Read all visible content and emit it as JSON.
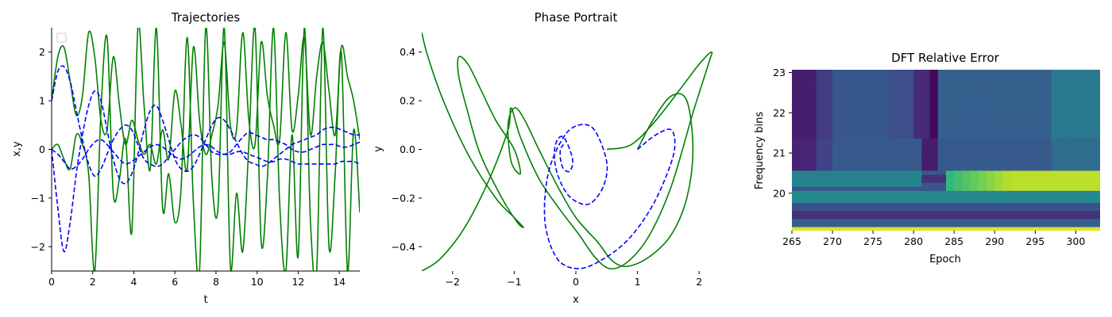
{
  "chart_data": [
    {
      "type": "line",
      "title": "Trajectories",
      "xlabel": "t",
      "ylabel": "x,y",
      "xlim": [
        0,
        15
      ],
      "ylim": [
        -2.5,
        2.5
      ],
      "xticks": [
        "0",
        "2",
        "4",
        "6",
        "8",
        "10",
        "12",
        "14"
      ],
      "yticks": [
        "2",
        "1",
        "0",
        "−1",
        "−2"
      ],
      "legend": "top-left (empty box)",
      "grid": false,
      "series": [
        {
          "style": "solid",
          "color": "#008000",
          "x": [
            0,
            0.3,
            0.6,
            0.9,
            1.2,
            1.5,
            1.8,
            2.1,
            2.4,
            2.7,
            3.0,
            3.3,
            3.6,
            3.9,
            4.2,
            4.5,
            4.8,
            5.1,
            5.4,
            5.7,
            6.0,
            6.3,
            6.6,
            6.9,
            7.2,
            7.5,
            7.8,
            8.1,
            8.4,
            8.7,
            9.0,
            9.3,
            9.6,
            9.9,
            10.2,
            10.5,
            10.8,
            11.1,
            11.4,
            11.7,
            12.0,
            12.3,
            12.6,
            12.9,
            13.2,
            13.5,
            13.8,
            14.1,
            14.4,
            14.7,
            15.0
          ],
          "y": [
            1.0,
            1.9,
            2.1,
            1.4,
            0.7,
            1.1,
            2.4,
            1.9,
            0.6,
            0.4,
            1.9,
            0.9,
            0.1,
            0.6,
            0.2,
            -0.1,
            0.1,
            -0.3,
            0.4,
            -0.2,
            1.2,
            0.5,
            -0.4,
            2.1,
            0.6,
            -0.1,
            0.3,
            0.9,
            2.2,
            0.5,
            0.4,
            2.4,
            0.6,
            0.1,
            2.2,
            1.1,
            0.5,
            0.2,
            2.4,
            0.4,
            1.1,
            2.3,
            0.3,
            1.5,
            2.2,
            1.2,
            0.3,
            2.1,
            1.5,
            1.0,
            0.2
          ]
        },
        {
          "style": "solid",
          "color": "#008000",
          "x": [
            0,
            0.3,
            0.6,
            0.9,
            1.2,
            1.5,
            1.8,
            2.1,
            2.4,
            2.7,
            3.0,
            3.3,
            3.6,
            3.9,
            4.2,
            4.5,
            4.8,
            5.1,
            5.4,
            5.7,
            6.0,
            6.3,
            6.6,
            6.9,
            7.2,
            7.5,
            7.8,
            8.1,
            8.4,
            8.7,
            9.0,
            9.3,
            9.6,
            9.9,
            10.2,
            10.5,
            10.8,
            11.1,
            11.4,
            11.7,
            12.0,
            12.3,
            12.6,
            12.9,
            13.2,
            13.5,
            13.8,
            14.1,
            14.4,
            14.7,
            15.0
          ],
          "y": [
            0.0,
            0.1,
            -0.2,
            -0.4,
            0.3,
            0.1,
            -0.5,
            -2.5,
            0.8,
            2.3,
            -0.9,
            -0.6,
            0.2,
            -1.7,
            2.5,
            0.9,
            -0.4,
            2.5,
            -1.2,
            -0.5,
            -1.5,
            -0.8,
            2.3,
            -1.1,
            -2.5,
            2.5,
            -0.6,
            -1.2,
            2.5,
            -2.4,
            -0.9,
            -2.1,
            0.1,
            2.5,
            -1.9,
            -0.6,
            2.5,
            -1.1,
            -2.5,
            0.3,
            -2.2,
            2.5,
            -1.5,
            -2.5,
            2.5,
            -2.0,
            -0.5,
            2.0,
            -2.5,
            0.4,
            -1.3
          ]
        },
        {
          "style": "dashed",
          "color": "#0000ff",
          "x": [
            0,
            0.3,
            0.6,
            0.9,
            1.2,
            1.5,
            1.8,
            2.1,
            2.4,
            2.7,
            3.0,
            3.3,
            3.6,
            3.9,
            4.2,
            4.5,
            4.8,
            5.1,
            5.4,
            5.7,
            6.0,
            6.3,
            6.6,
            6.9,
            7.2,
            7.5,
            7.8,
            8.1,
            8.4,
            8.7,
            9.0,
            9.3,
            9.6,
            9.9,
            10.2,
            10.5,
            10.8,
            11.1,
            11.4,
            11.7,
            12.0,
            12.3,
            12.6,
            12.9,
            13.2,
            13.5,
            13.8,
            14.1,
            14.4,
            14.7,
            15.0
          ],
          "y": [
            1.0,
            1.6,
            1.7,
            1.4,
            0.8,
            0.2,
            -0.3,
            -0.55,
            -0.4,
            -0.1,
            0.2,
            0.4,
            0.5,
            0.4,
            0.1,
            -0.2,
            -0.3,
            -0.35,
            -0.3,
            -0.15,
            0.0,
            0.15,
            0.25,
            0.3,
            0.25,
            0.1,
            -0.05,
            -0.1,
            -0.1,
            -0.05,
            0.1,
            0.25,
            0.35,
            0.3,
            0.25,
            0.2,
            0.2,
            0.15,
            0.1,
            0.0,
            -0.05,
            -0.05,
            0.0,
            0.05,
            0.1,
            0.1,
            0.1,
            0.05,
            0.05,
            0.1,
            0.15
          ]
        },
        {
          "style": "dashed",
          "color": "#0000ff",
          "x": [
            0,
            0.3,
            0.6,
            0.9,
            1.2,
            1.5,
            1.8,
            2.1,
            2.4,
            2.7,
            3.0,
            3.3,
            3.6,
            3.9,
            4.2,
            4.5,
            4.8,
            5.1,
            5.4,
            5.7,
            6.0,
            6.3,
            6.6,
            6.9,
            7.2,
            7.5,
            7.8,
            8.1,
            8.4,
            8.7,
            9.0,
            9.3,
            9.6,
            9.9,
            10.2,
            10.5,
            10.8,
            11.1,
            11.4,
            11.7,
            12.0,
            12.3,
            12.6,
            12.9,
            13.2,
            13.5,
            13.8,
            14.1,
            14.4,
            14.7,
            15.0
          ],
          "y": [
            0.0,
            -1.2,
            -2.1,
            -1.5,
            -0.5,
            0.3,
            0.9,
            1.2,
            1.0,
            0.4,
            -0.2,
            -0.6,
            -0.7,
            -0.5,
            -0.1,
            0.4,
            0.8,
            0.9,
            0.6,
            0.2,
            -0.2,
            -0.4,
            -0.45,
            -0.35,
            -0.1,
            0.2,
            0.5,
            0.65,
            0.6,
            0.4,
            0.15,
            -0.1,
            -0.25,
            -0.3,
            -0.35,
            -0.3,
            -0.2,
            -0.1,
            0.0,
            0.1,
            0.15,
            0.2,
            0.25,
            0.3,
            0.4,
            0.45,
            0.45,
            0.4,
            0.35,
            0.3,
            0.3
          ]
        },
        {
          "style": "dashed",
          "color": "#0000ff",
          "x": [
            0,
            0.3,
            0.6,
            0.9,
            1.2,
            1.5,
            1.8,
            2.1,
            2.4,
            2.7,
            3.0,
            3.3,
            3.6,
            3.9,
            4.2,
            4.5,
            4.8,
            5.1,
            5.4,
            5.7,
            6.0,
            6.3,
            6.6,
            6.9,
            7.2,
            7.5,
            7.8,
            8.1,
            8.4,
            8.7,
            9.0,
            9.3,
            9.6,
            9.9,
            10.2,
            10.5,
            10.8,
            11.1,
            11.4,
            11.7,
            12.0,
            12.3,
            12.6,
            12.9,
            13.2,
            13.5,
            13.8,
            14.1,
            14.4,
            14.7,
            15.0
          ],
          "y": [
            0.0,
            -0.1,
            -0.25,
            -0.4,
            -0.35,
            -0.2,
            0.0,
            0.15,
            0.2,
            0.1,
            -0.05,
            -0.2,
            -0.3,
            -0.25,
            -0.15,
            -0.05,
            0.05,
            0.1,
            0.05,
            -0.05,
            -0.15,
            -0.2,
            -0.15,
            -0.05,
            0.05,
            0.1,
            0.05,
            -0.05,
            -0.1,
            -0.1,
            -0.05,
            -0.05,
            -0.1,
            -0.15,
            -0.2,
            -0.25,
            -0.25,
            -0.2,
            -0.2,
            -0.25,
            -0.3,
            -0.3,
            -0.3,
            -0.3,
            -0.3,
            -0.3,
            -0.3,
            -0.25,
            -0.25,
            -0.25,
            -0.3
          ]
        }
      ]
    },
    {
      "type": "line",
      "title": "Phase Portrait",
      "xlabel": "x",
      "ylabel": "y",
      "xlim": [
        -2.5,
        2.5
      ],
      "ylim": [
        -0.5,
        0.5
      ],
      "xticks": [
        "−2",
        "−1",
        "0",
        "1",
        "2"
      ],
      "yticks": [
        "0.4",
        "0.2",
        "0.0",
        "−0.2",
        "−0.4"
      ],
      "grid": false,
      "series": [
        {
          "style": "solid",
          "color": "#008000",
          "x": [
            1.0,
            1.25,
            1.55,
            1.8,
            1.9,
            1.8,
            1.55,
            1.2,
            0.85,
            0.6,
            0.35,
            0.0,
            -0.3,
            -0.6,
            -0.85,
            -1.0,
            -1.1,
            -1.05,
            -0.9,
            -1.0,
            -1.3,
            -1.55,
            -1.75,
            -1.9,
            -1.9,
            -1.75,
            -1.55,
            -1.2,
            -0.95,
            -0.85,
            -1.0,
            -1.3,
            -1.75,
            -2.15,
            -2.4,
            -2.5
          ],
          "y": [
            0.0,
            0.12,
            0.22,
            0.2,
            0.0,
            -0.2,
            -0.35,
            -0.44,
            -0.48,
            -0.46,
            -0.38,
            -0.28,
            -0.15,
            0.0,
            0.13,
            0.17,
            0.1,
            -0.05,
            -0.1,
            0.0,
            0.12,
            0.25,
            0.35,
            0.38,
            0.3,
            0.15,
            -0.02,
            -0.2,
            -0.3,
            -0.32,
            -0.28,
            -0.2,
            -0.02,
            0.2,
            0.38,
            0.48
          ]
        },
        {
          "style": "solid",
          "color": "#008000",
          "x": [
            -2.5,
            -2.2,
            -1.8,
            -1.4,
            -1.1,
            -1.05,
            -0.9,
            -0.6,
            -0.25,
            0.05,
            0.3,
            0.55,
            0.85,
            1.2,
            1.55,
            1.9,
            2.15,
            2.2,
            2.0,
            1.7,
            1.3,
            0.9,
            0.5
          ],
          "y": [
            -0.5,
            -0.45,
            -0.32,
            -0.12,
            0.08,
            0.17,
            0.05,
            -0.12,
            -0.25,
            -0.35,
            -0.44,
            -0.49,
            -0.46,
            -0.35,
            -0.15,
            0.15,
            0.35,
            0.4,
            0.35,
            0.25,
            0.12,
            0.02,
            0.0
          ]
        },
        {
          "style": "dashed",
          "color": "#0000ff",
          "x": [
            1.0,
            1.3,
            1.55,
            1.6,
            1.45,
            1.2,
            0.85,
            0.45,
            0.05,
            -0.3,
            -0.5,
            -0.45,
            -0.2,
            0.05,
            0.3,
            0.5,
            0.45,
            0.25,
            0.05,
            -0.15,
            -0.3,
            -0.35,
            -0.3,
            -0.2,
            -0.1,
            -0.05,
            -0.1,
            -0.2,
            -0.25,
            -0.25,
            -0.2
          ],
          "y": [
            0.0,
            0.06,
            0.08,
            0.0,
            -0.12,
            -0.25,
            -0.37,
            -0.45,
            -0.49,
            -0.45,
            -0.3,
            -0.1,
            0.05,
            0.1,
            0.08,
            -0.05,
            -0.15,
            -0.22,
            -0.22,
            -0.18,
            -0.1,
            -0.02,
            0.04,
            0.05,
            0.0,
            -0.05,
            -0.09,
            -0.08,
            -0.04,
            0.0,
            0.02
          ]
        }
      ]
    },
    {
      "type": "heatmap",
      "title": "DFT Relative Error",
      "xlabel": "Epoch",
      "ylabel": "Frequency bins",
      "xlim": [
        265,
        303
      ],
      "ylim": [
        19.07,
        23.07
      ],
      "xticks": [
        "265",
        "270",
        "275",
        "280",
        "285",
        "290",
        "295",
        "300"
      ],
      "yticks": [
        "23",
        "22",
        "21",
        "20"
      ],
      "colormap": "viridis",
      "grid": false
    }
  ]
}
